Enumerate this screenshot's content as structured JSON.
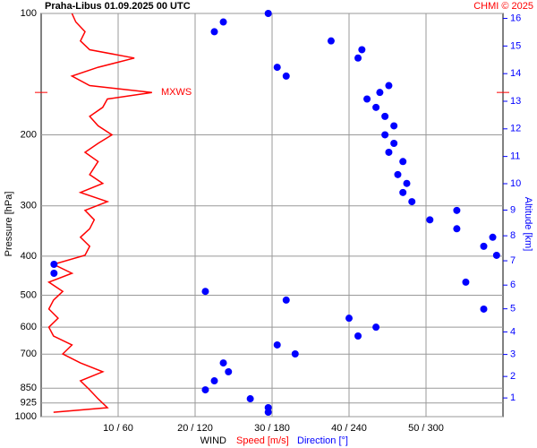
{
  "chart_data": {
    "type": "sounding",
    "title": "Praha-Libus   01.09.2025 00 UTC",
    "credit": "CHMI © 2025",
    "xlabel": "WIND",
    "ylabel": "Pressure [hPa]",
    "y2label": "Altitude [km]",
    "log_scale_y": true,
    "grid": true,
    "ylim": [
      1000,
      100
    ],
    "yticks": [
      100,
      200,
      300,
      400,
      500,
      600,
      700,
      850,
      925,
      1000
    ],
    "y2ticks": [
      1,
      2,
      3,
      4,
      5,
      6,
      7,
      8,
      9,
      10,
      11,
      12,
      13,
      14,
      15,
      16
    ],
    "xlim": [
      0,
      60
    ],
    "xticks": [
      {
        "value": 10,
        "label": "10 / 60"
      },
      {
        "value": 20,
        "label": "20 / 120"
      },
      {
        "value": 30,
        "label": "30 / 180"
      },
      {
        "value": 40,
        "label": "40 / 240"
      },
      {
        "value": 50,
        "label": "50 / 300"
      }
    ],
    "y": [
      100,
      105,
      111,
      117,
      123,
      129,
      136,
      143,
      151,
      157,
      163,
      171,
      180,
      190,
      200,
      210,
      221,
      233,
      251,
      264,
      278,
      293,
      308,
      325,
      342,
      359,
      378,
      398,
      419,
      441,
      464,
      489,
      514,
      541,
      570,
      600,
      631,
      664,
      699,
      736,
      774,
      815,
      858,
      903,
      950,
      975
    ],
    "series": [
      {
        "name": "Speed [m/s]",
        "color": "#ff0000",
        "style": "line",
        "xlim": [
          0,
          60
        ],
        "values": [
          4.0,
          4.5,
          5.7,
          5.1,
          6.3,
          12.1,
          7.4,
          4.0,
          6.3,
          14.4,
          8.6,
          8.0,
          6.3,
          7.4,
          9.2,
          7.4,
          5.7,
          7.4,
          6.3,
          8.0,
          5.1,
          8.6,
          5.7,
          6.9,
          6.3,
          5.1,
          6.3,
          5.7,
          1.6,
          4.0,
          1.0,
          2.8,
          1.6,
          1.0,
          2.2,
          1.0,
          1.6,
          4.0,
          2.8,
          5.1,
          8.0,
          5.1,
          6.3,
          7.4,
          8.6,
          1.6
        ]
      },
      {
        "name": "Direction [°]",
        "color": "#0000ff",
        "style": "dots",
        "xlim": [
          0,
          360
        ],
        "values": [
          177,
          142,
          135,
          226,
          250,
          247,
          184,
          191,
          271,
          264,
          254,
          261,
          268,
          275,
          268,
          275,
          271,
          282,
          278,
          285,
          282,
          289,
          324,
          303,
          324,
          352,
          345,
          355,
          10,
          10,
          331,
          128,
          191,
          345,
          240,
          261,
          247,
          184,
          198,
          142,
          146,
          135,
          128,
          163,
          177,
          177
        ]
      }
    ],
    "annotation": {
      "text": "MXWS",
      "y": 157
    }
  }
}
